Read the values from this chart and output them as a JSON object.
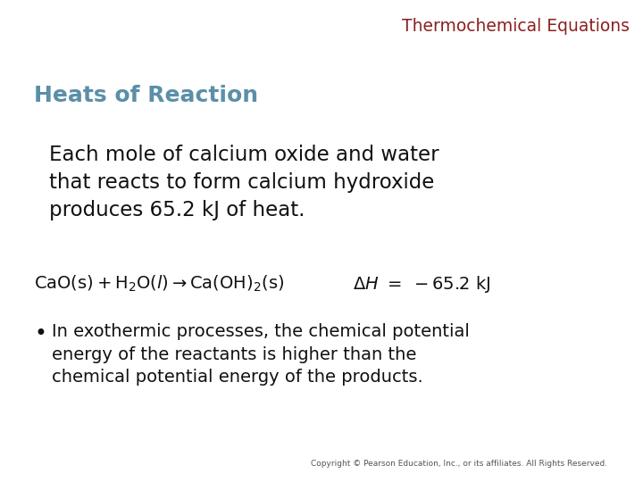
{
  "background_color": "#ffffff",
  "title": "Thermochemical Equations",
  "title_color": "#8B2020",
  "title_fontsize": 13.5,
  "section_heading": "Heats of Reaction",
  "section_heading_color": "#5B8FA8",
  "section_heading_fontsize": 18,
  "body_text": "Each mole of calcium oxide and water\nthat reacts to form calcium hydroxide\nproduces 65.2 kJ of heat.",
  "body_text_fontsize": 16.5,
  "bullet_text": "In exothermic processes, the chemical potential\nenergy of the reactants is higher than the\nchemical potential energy of the products.",
  "bullet_fontsize": 14,
  "equation_fontsize": 14,
  "copyright_text": "Copyright © Pearson Education, Inc., or its affiliates. All Rights Reserved.",
  "copyright_fontsize": 6.5
}
